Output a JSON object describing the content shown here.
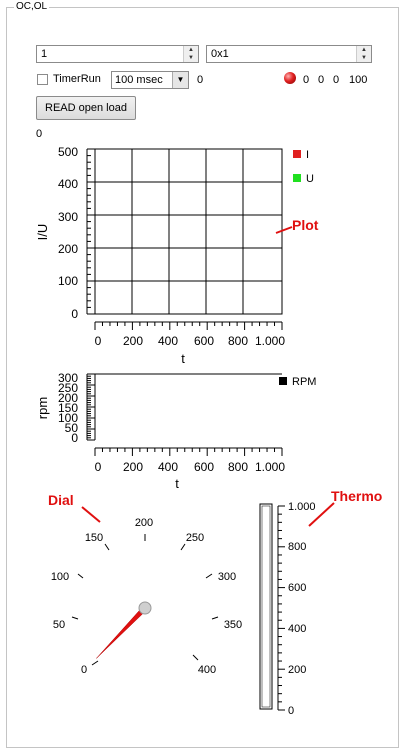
{
  "group": {
    "title": "OC,OL"
  },
  "controls": {
    "spin1_value": "1",
    "spin2_value": "0x1",
    "timer_label": "TimerRun",
    "interval_value": "100 msec",
    "counter_value": "0",
    "status_values": [
      "0",
      "0",
      "0",
      "100"
    ],
    "read_button": "READ open load",
    "small_value": "0"
  },
  "plot1": {
    "ylabel": "I/U",
    "xlabel": "t",
    "y_ticks": [
      "500",
      "400",
      "300",
      "200",
      "100",
      "0"
    ],
    "x_ticks": [
      "0",
      "200",
      "400",
      "600",
      "800",
      "1.000"
    ],
    "legend": [
      {
        "name": "I",
        "color": "#e02020"
      },
      {
        "name": "U",
        "color": "#20e020"
      }
    ]
  },
  "plot2": {
    "ylabel": "rpm",
    "xlabel": "t",
    "y_ticks": [
      "300",
      "250",
      "200",
      "150",
      "100",
      "50",
      "0"
    ],
    "x_ticks": [
      "0",
      "200",
      "400",
      "600",
      "800",
      "1.000"
    ],
    "legend": [
      {
        "name": "RPM",
        "color": "#000000"
      }
    ]
  },
  "dial": {
    "labels": [
      "0",
      "50",
      "100",
      "150",
      "200",
      "250",
      "300",
      "350",
      "400"
    ],
    "value": 0,
    "needle_color": "#e01010"
  },
  "thermo": {
    "labels": [
      "1.000",
      "800",
      "600",
      "400",
      "200",
      "0"
    ],
    "value": 0
  },
  "annotations": {
    "plot": "Plot",
    "dial": "Dial",
    "thermo": "Thermo"
  }
}
